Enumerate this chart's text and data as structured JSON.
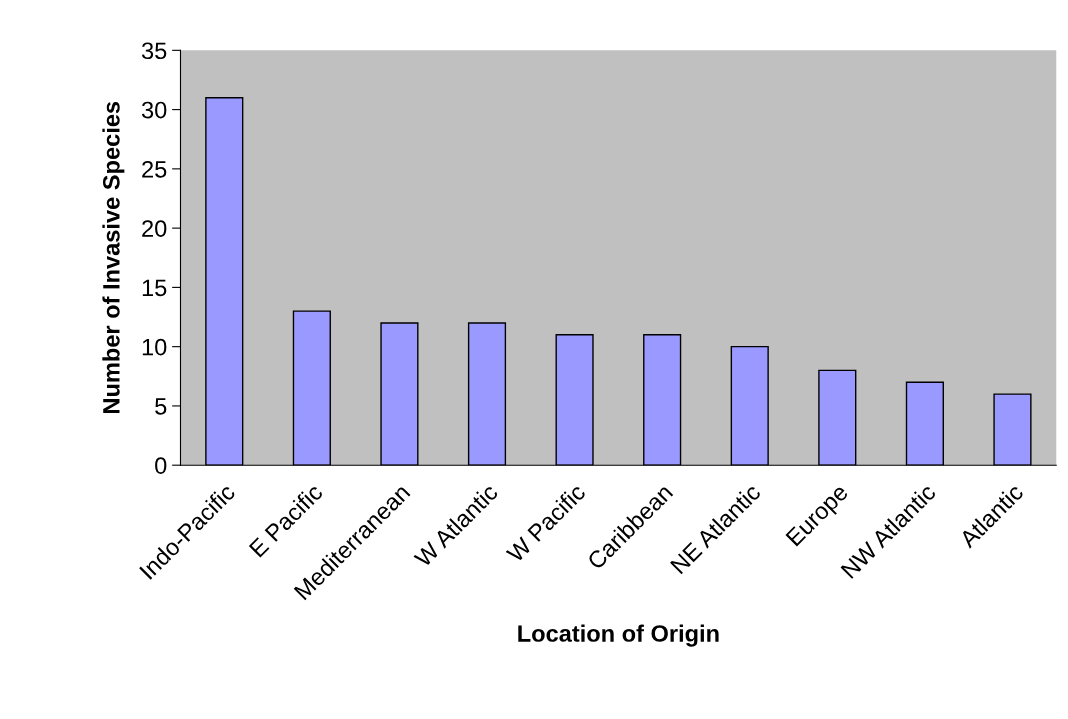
{
  "chart_data": {
    "type": "bar",
    "xlabel": "Location of Origin",
    "ylabel": "Number of Invasive Species",
    "categories": [
      "Indo-Pacific",
      "E Pacific",
      "Mediterranean",
      "W Atlantic",
      "W Pacific",
      "Caribbean",
      "NE Atlantic",
      "Europe",
      "NW Atlantic",
      "Atlantic"
    ],
    "values": [
      31,
      13,
      12,
      12,
      11,
      11,
      10,
      8,
      7,
      6
    ],
    "color": "#9999ff",
    "ylim": [
      0,
      35
    ],
    "yticks": [
      0,
      5,
      10,
      15,
      20,
      25,
      30,
      35
    ],
    "grid": false
  }
}
